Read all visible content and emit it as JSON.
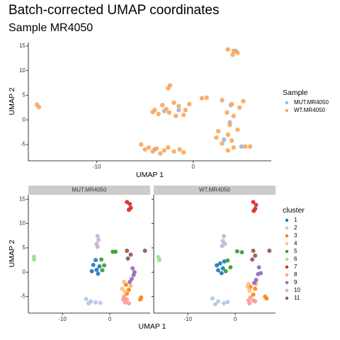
{
  "chart_data": [
    {
      "type": "scatter",
      "title": "Batch-corrected UMAP coordinates",
      "subtitle": "Sample MR4050",
      "xlabel": "UMAP 1",
      "ylabel": "UMAP 2",
      "xlim": [
        -17.1,
        8.1
      ],
      "ylim": [
        -8.3,
        15.7
      ],
      "xticks": [
        -10,
        0
      ],
      "yticks": [
        -5,
        0,
        5,
        10,
        15
      ],
      "legend_title": "Sample",
      "legend": "right",
      "series": [
        {
          "name": "MUT.MR4050",
          "color": "#9db5e0",
          "x": [
            -3,
            -1.5,
            3.8,
            3.2,
            -4,
            4.4,
            5,
            3.9
          ],
          "y": [
            1.8,
            2,
            -0.5,
            -4,
            -6,
            14,
            -5.4,
            3
          ]
        },
        {
          "name": "WT.MR4050",
          "color": "#f9a65a",
          "x": [
            -16.2,
            -16,
            -4,
            -3.2,
            -2.5,
            -1.5,
            -0.8,
            -3.6,
            -2,
            -1,
            -2.8,
            -0.4,
            -4.2,
            -1.8,
            -2.4,
            -2.6,
            0.9,
            1.4,
            -5.4,
            -4.6,
            -3.8,
            -3,
            -2,
            -1,
            -4.2,
            -2.6,
            -1.4,
            -5,
            -3.4,
            3,
            4,
            5.2,
            3.5,
            4.8,
            4.2,
            3.8,
            2.6,
            3.6,
            4,
            3,
            4.2,
            3.6,
            2.4,
            4.6,
            5.4,
            5.9,
            3.6,
            4.2,
            4.6,
            4.1
          ],
          "y": [
            3.1,
            2.6,
            2,
            3,
            1.5,
            2.8,
            2,
            1.2,
            3.5,
            1,
            2.2,
            3.2,
            1.6,
            0.8,
            7,
            6.4,
            4.4,
            4.5,
            -5,
            -5.6,
            -5.8,
            -6.2,
            -6.4,
            -6.6,
            -6.4,
            -5.6,
            -6,
            -6,
            -6.8,
            4,
            3.2,
            3.8,
            1.5,
            2.5,
            0.8,
            -1,
            -2.3,
            -3,
            -4.2,
            -4.8,
            -5.6,
            -6.2,
            -3.6,
            -2,
            -5.4,
            -5.4,
            14.3,
            14,
            13.6,
            13.2
          ]
        }
      ]
    },
    {
      "type": "facet_scatter",
      "panels": [
        "MUT.MR4050",
        "WT.MR4050"
      ],
      "xlabel": "UMAP 1",
      "ylabel": "UMAP 2",
      "xlim": [
        -17.2,
        8.5
      ],
      "ylim": [
        -8.4,
        15.9
      ],
      "xticks": [
        -10,
        0
      ],
      "yticks": [
        -5,
        0,
        5,
        10,
        15
      ],
      "legend_title": "cluster",
      "legend": "right",
      "series": [
        {
          "name": "1",
          "color": "#1f77b4",
          "x": [
            [
              -3.5,
              -2.8,
              -3,
              -2.2,
              -3.8,
              -2.5
            ],
            [
              -3.2,
              -2.6,
              -3.6,
              -2.3,
              -2.9,
              -3.9
            ]
          ],
          "y": [
            [
              1.5,
              0.5,
              2.5,
              1.2,
              0.2,
              -0.3
            ],
            [
              1.8,
              0.8,
              0.4,
              2.2,
              -0.2,
              1.4
            ]
          ]
        },
        {
          "name": "2",
          "color": "#aec7e8",
          "x": [
            [
              -5,
              -4,
              -3,
              -2,
              -4.5
            ],
            [
              -4.8,
              -3.6,
              -2.4,
              -1.6,
              -4.2
            ]
          ],
          "y": [
            [
              -5.5,
              -6,
              -6.2,
              -6.3,
              -6.4
            ],
            [
              -5.4,
              -6,
              -6.4,
              -6.1,
              -6.6
            ]
          ]
        },
        {
          "name": "3",
          "color": "#ff7f0e",
          "x": [
            [
              3.4,
              4,
              3.6,
              6.6,
              6.4
            ],
            [
              3.2,
              4.2,
              3.8,
              6.6,
              6.3
            ]
          ],
          "y": [
            [
              -2.6,
              -3.6,
              -4.4,
              -5.2,
              -5.6
            ],
            [
              -3,
              -3.4,
              -4.6,
              -5.4,
              -5
            ]
          ]
        },
        {
          "name": "4",
          "color": "#ffbb78",
          "x": [
            [
              3,
              4.4,
              3.2,
              2.6
            ],
            [
              2.8,
              4.4,
              3,
              2.6
            ]
          ],
          "y": [
            [
              -2,
              -2.8,
              -4,
              -3.4
            ],
            [
              -2.4,
              -2.4,
              -3.8,
              -3
            ]
          ]
        },
        {
          "name": "5",
          "color": "#2ca02c",
          "x": [
            [
              -1.8,
              -1.2,
              -1.6,
              0.6,
              1.2
            ],
            [
              -1.6,
              -1,
              -2,
              0.4,
              1.4
            ]
          ],
          "y": [
            [
              2.6,
              1.4,
              0.4,
              4.2,
              4.2
            ],
            [
              2.4,
              1,
              0.2,
              4.3,
              4.1
            ]
          ]
        },
        {
          "name": "6",
          "color": "#98df8a",
          "x": [
            [
              -16,
              -16
            ],
            [
              -16.2,
              -16
            ]
          ],
          "y": [
            [
              3.2,
              2.6
            ],
            [
              3.1,
              2.5
            ]
          ]
        },
        {
          "name": "7",
          "color": "#d62728",
          "x": [
            [
              3.6,
              4.2,
              4.4,
              4
            ],
            [
              3.8,
              4.4,
              4.2,
              3.9
            ]
          ],
          "y": [
            [
              14.4,
              14,
              13.2,
              12.8
            ],
            [
              14.4,
              13.8,
              13,
              12.6
            ]
          ]
        },
        {
          "name": "8",
          "color": "#ff9896",
          "x": [
            [
              3,
              3.6,
              3.2,
              4,
              2.8
            ],
            [
              3.2,
              3.8,
              3,
              4.2,
              2.8
            ]
          ],
          "y": [
            [
              -5,
              -5.6,
              -6.2,
              -6.4,
              -5.6
            ],
            [
              -5.2,
              -5.8,
              -6.4,
              -6,
              -5.8
            ]
          ]
        },
        {
          "name": "9",
          "color": "#9467bd",
          "x": [
            [
              4.8,
              5,
              4.6,
              4.2,
              5.2
            ],
            [
              5,
              4.8,
              4.4,
              4,
              5.4
            ]
          ],
          "y": [
            [
              0.8,
              -0.6,
              -1.4,
              -2,
              0
            ],
            [
              1,
              -0.4,
              -1.6,
              -2.2,
              -0.2
            ]
          ]
        },
        {
          "name": "10",
          "color": "#c5b0d5",
          "x": [
            [
              -2.6,
              -2.4,
              -2.8,
              -2.6
            ],
            [
              -2.4,
              -2.6,
              -2.2,
              -2.8
            ]
          ],
          "y": [
            [
              7.4,
              6.6,
              5.8,
              5.2
            ],
            [
              7.4,
              6.4,
              5.8,
              5.4
            ]
          ]
        },
        {
          "name": "11",
          "color": "#8c564b",
          "x": [
            [
              3.6,
              4.4,
              3.8,
              7.4
            ],
            [
              3.8,
              4.2,
              3.6,
              7.2
            ]
          ],
          "y": [
            [
              4.4,
              3.6,
              2.8,
              4.4
            ],
            [
              4.4,
              3.4,
              2.6,
              4.4
            ]
          ]
        }
      ]
    }
  ]
}
